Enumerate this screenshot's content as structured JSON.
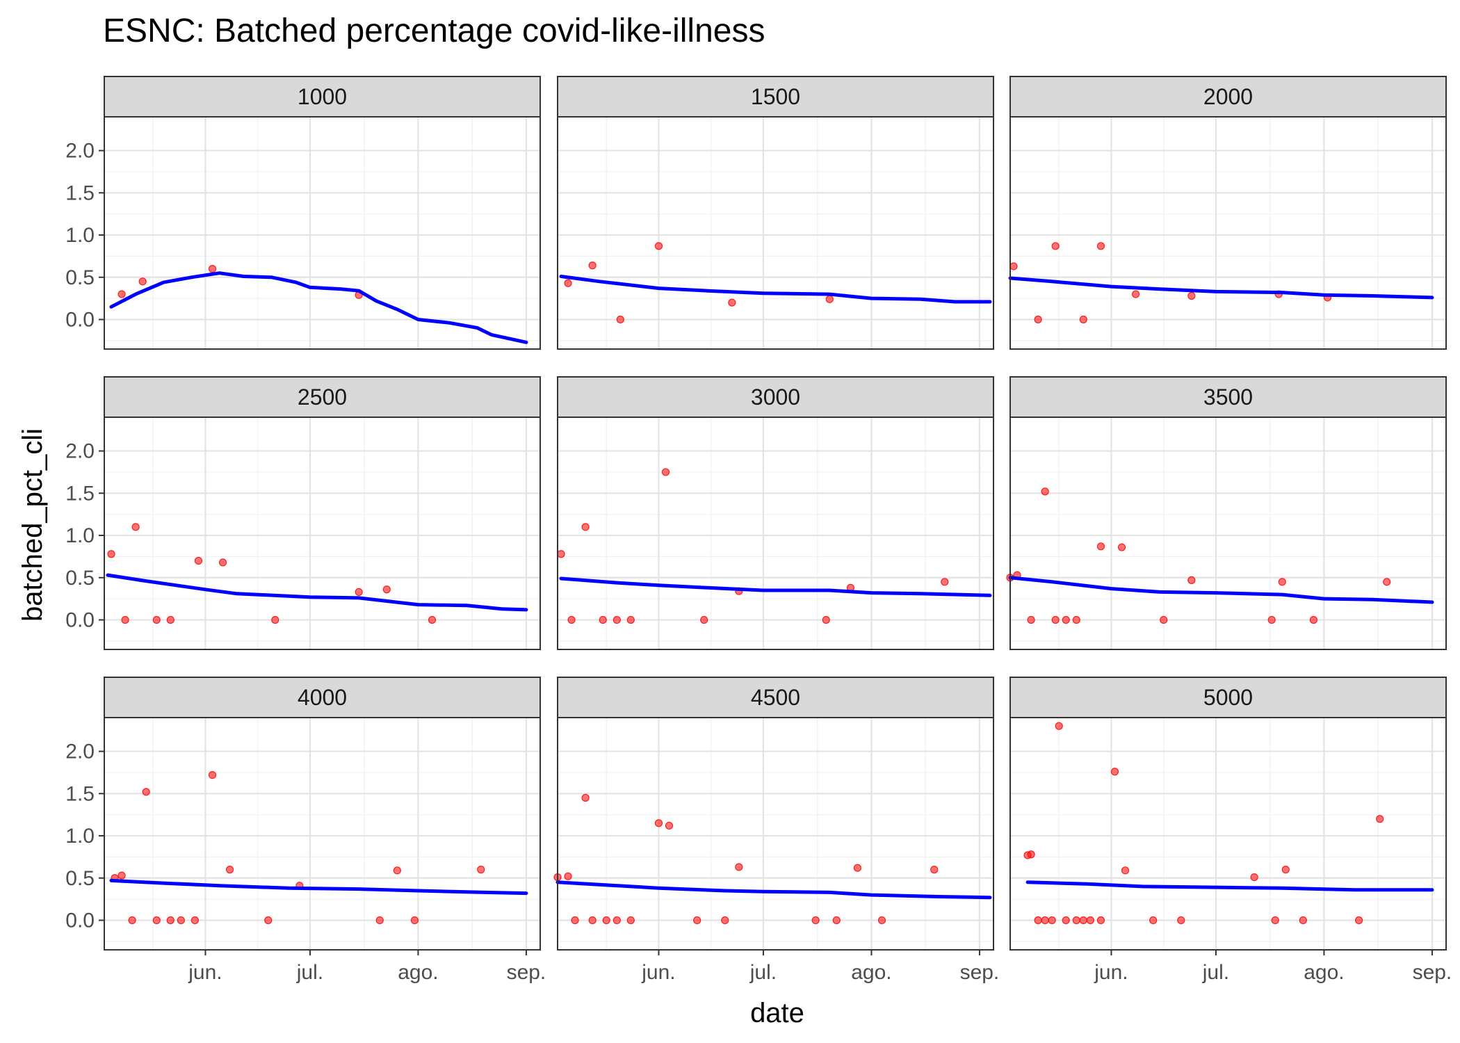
{
  "chart_data": {
    "type": "scatter",
    "title": "ESNC: Batched percentage covid-like-illness",
    "xlabel": "date",
    "ylabel": "batched_pct_cli",
    "ylim": [
      -0.35,
      2.4
    ],
    "xlim": [
      "2020-05-03",
      "2020-09-05"
    ],
    "x_ticks": [
      {
        "date": "2020-06-01",
        "label": "jun."
      },
      {
        "date": "2020-07-01",
        "label": "jul."
      },
      {
        "date": "2020-08-01",
        "label": "ago."
      },
      {
        "date": "2020-09-01",
        "label": "sep."
      }
    ],
    "y_ticks": [
      0.0,
      0.5,
      1.0,
      1.5,
      2.0
    ],
    "y_tick_labels": [
      "0.0",
      "0.5",
      "1.0",
      "1.5",
      "2.0"
    ],
    "grid": true,
    "point_color": "#ff0000",
    "line_color": "#0000ff",
    "strip_color": "#d9d9d9",
    "panels": [
      {
        "label": "1000",
        "points": [
          [
            "2020-05-08",
            0.3
          ],
          [
            "2020-05-14",
            0.45
          ],
          [
            "2020-06-03",
            0.6
          ],
          [
            "2020-07-15",
            0.29
          ]
        ],
        "line": [
          [
            "2020-05-05",
            0.15
          ],
          [
            "2020-05-12",
            0.3
          ],
          [
            "2020-05-20",
            0.44
          ],
          [
            "2020-05-28",
            0.5
          ],
          [
            "2020-06-05",
            0.55
          ],
          [
            "2020-06-12",
            0.51
          ],
          [
            "2020-06-20",
            0.5
          ],
          [
            "2020-06-27",
            0.44
          ],
          [
            "2020-07-01",
            0.38
          ],
          [
            "2020-07-10",
            0.36
          ],
          [
            "2020-07-15",
            0.34
          ],
          [
            "2020-07-20",
            0.22
          ],
          [
            "2020-07-26",
            0.12
          ],
          [
            "2020-08-01",
            0.0
          ],
          [
            "2020-08-10",
            -0.04
          ],
          [
            "2020-08-18",
            -0.1
          ],
          [
            "2020-08-22",
            -0.18
          ],
          [
            "2020-09-01",
            -0.27
          ]
        ]
      },
      {
        "label": "1500",
        "points": [
          [
            "2020-05-06",
            0.43
          ],
          [
            "2020-05-13",
            0.64
          ],
          [
            "2020-05-21",
            0.0
          ],
          [
            "2020-06-01",
            0.87
          ],
          [
            "2020-06-22",
            0.2
          ],
          [
            "2020-07-20",
            0.24
          ]
        ],
        "line": [
          [
            "2020-05-04",
            0.51
          ],
          [
            "2020-05-15",
            0.45
          ],
          [
            "2020-06-01",
            0.37
          ],
          [
            "2020-06-15",
            0.34
          ],
          [
            "2020-07-01",
            0.31
          ],
          [
            "2020-07-20",
            0.3
          ],
          [
            "2020-08-01",
            0.25
          ],
          [
            "2020-08-15",
            0.24
          ],
          [
            "2020-08-25",
            0.21
          ],
          [
            "2020-09-04",
            0.21
          ]
        ]
      },
      {
        "label": "2000",
        "points": [
          [
            "2020-05-04",
            0.63
          ],
          [
            "2020-05-11",
            0.0
          ],
          [
            "2020-05-16",
            0.87
          ],
          [
            "2020-05-24",
            0.0
          ],
          [
            "2020-05-29",
            0.87
          ],
          [
            "2020-06-08",
            0.3
          ],
          [
            "2020-06-24",
            0.28
          ],
          [
            "2020-07-19",
            0.3
          ],
          [
            "2020-08-02",
            0.26
          ]
        ],
        "line": [
          [
            "2020-05-03",
            0.49
          ],
          [
            "2020-05-15",
            0.45
          ],
          [
            "2020-06-01",
            0.39
          ],
          [
            "2020-06-15",
            0.36
          ],
          [
            "2020-07-01",
            0.33
          ],
          [
            "2020-07-20",
            0.32
          ],
          [
            "2020-08-01",
            0.29
          ],
          [
            "2020-08-15",
            0.28
          ],
          [
            "2020-09-01",
            0.26
          ]
        ]
      },
      {
        "label": "2500",
        "points": [
          [
            "2020-05-05",
            0.78
          ],
          [
            "2020-05-09",
            0.0
          ],
          [
            "2020-05-12",
            1.1
          ],
          [
            "2020-05-18",
            0.0
          ],
          [
            "2020-05-22",
            0.0
          ],
          [
            "2020-05-30",
            0.7
          ],
          [
            "2020-06-06",
            0.68
          ],
          [
            "2020-06-21",
            0.0
          ],
          [
            "2020-07-15",
            0.33
          ],
          [
            "2020-07-23",
            0.36
          ],
          [
            "2020-08-05",
            0.0
          ]
        ],
        "line": [
          [
            "2020-05-04",
            0.53
          ],
          [
            "2020-05-15",
            0.46
          ],
          [
            "2020-06-01",
            0.36
          ],
          [
            "2020-06-10",
            0.31
          ],
          [
            "2020-07-01",
            0.27
          ],
          [
            "2020-07-15",
            0.26
          ],
          [
            "2020-08-01",
            0.18
          ],
          [
            "2020-08-15",
            0.17
          ],
          [
            "2020-08-25",
            0.13
          ],
          [
            "2020-09-01",
            0.12
          ]
        ]
      },
      {
        "label": "3000",
        "points": [
          [
            "2020-05-04",
            0.78
          ],
          [
            "2020-05-07",
            0.0
          ],
          [
            "2020-05-11",
            1.1
          ],
          [
            "2020-05-16",
            0.0
          ],
          [
            "2020-05-20",
            0.0
          ],
          [
            "2020-05-24",
            0.0
          ],
          [
            "2020-06-03",
            1.75
          ],
          [
            "2020-06-14",
            0.0
          ],
          [
            "2020-06-24",
            0.34
          ],
          [
            "2020-07-19",
            0.0
          ],
          [
            "2020-07-26",
            0.38
          ],
          [
            "2020-08-22",
            0.45
          ]
        ],
        "line": [
          [
            "2020-05-04",
            0.49
          ],
          [
            "2020-05-20",
            0.44
          ],
          [
            "2020-06-01",
            0.41
          ],
          [
            "2020-06-15",
            0.38
          ],
          [
            "2020-07-01",
            0.35
          ],
          [
            "2020-07-20",
            0.35
          ],
          [
            "2020-08-01",
            0.32
          ],
          [
            "2020-08-15",
            0.31
          ],
          [
            "2020-09-04",
            0.29
          ]
        ]
      },
      {
        "label": "3500",
        "points": [
          [
            "2020-05-03",
            0.5
          ],
          [
            "2020-05-05",
            0.53
          ],
          [
            "2020-05-09",
            0.0
          ],
          [
            "2020-05-13",
            1.52
          ],
          [
            "2020-05-16",
            0.0
          ],
          [
            "2020-05-19",
            0.0
          ],
          [
            "2020-05-22",
            0.0
          ],
          [
            "2020-05-29",
            0.87
          ],
          [
            "2020-06-04",
            0.86
          ],
          [
            "2020-06-16",
            0.0
          ],
          [
            "2020-06-24",
            0.47
          ],
          [
            "2020-07-17",
            0.0
          ],
          [
            "2020-07-20",
            0.45
          ],
          [
            "2020-07-29",
            0.0
          ],
          [
            "2020-08-19",
            0.45
          ]
        ],
        "line": [
          [
            "2020-05-03",
            0.5
          ],
          [
            "2020-05-15",
            0.45
          ],
          [
            "2020-06-01",
            0.37
          ],
          [
            "2020-06-15",
            0.33
          ],
          [
            "2020-07-01",
            0.32
          ],
          [
            "2020-07-20",
            0.3
          ],
          [
            "2020-08-01",
            0.25
          ],
          [
            "2020-08-15",
            0.24
          ],
          [
            "2020-09-01",
            0.21
          ]
        ]
      },
      {
        "label": "4000",
        "points": [
          [
            "2020-05-06",
            0.5
          ],
          [
            "2020-05-08",
            0.53
          ],
          [
            "2020-05-11",
            0.0
          ],
          [
            "2020-05-15",
            1.52
          ],
          [
            "2020-05-18",
            0.0
          ],
          [
            "2020-05-22",
            0.0
          ],
          [
            "2020-05-25",
            0.0
          ],
          [
            "2020-05-29",
            0.0
          ],
          [
            "2020-06-03",
            1.72
          ],
          [
            "2020-06-08",
            0.6
          ],
          [
            "2020-06-19",
            0.0
          ],
          [
            "2020-06-28",
            0.41
          ],
          [
            "2020-07-21",
            0.0
          ],
          [
            "2020-07-26",
            0.59
          ],
          [
            "2020-07-31",
            0.0
          ],
          [
            "2020-08-19",
            0.6
          ]
        ],
        "line": [
          [
            "2020-05-05",
            0.47
          ],
          [
            "2020-05-20",
            0.44
          ],
          [
            "2020-06-05",
            0.41
          ],
          [
            "2020-06-25",
            0.38
          ],
          [
            "2020-07-15",
            0.37
          ],
          [
            "2020-08-01",
            0.35
          ],
          [
            "2020-08-20",
            0.33
          ],
          [
            "2020-09-01",
            0.32
          ]
        ]
      },
      {
        "label": "4500",
        "points": [
          [
            "2020-05-03",
            0.51
          ],
          [
            "2020-05-06",
            0.52
          ],
          [
            "2020-05-08",
            0.0
          ],
          [
            "2020-05-11",
            1.45
          ],
          [
            "2020-05-13",
            0.0
          ],
          [
            "2020-05-17",
            0.0
          ],
          [
            "2020-05-20",
            0.0
          ],
          [
            "2020-05-24",
            0.0
          ],
          [
            "2020-06-01",
            1.15
          ],
          [
            "2020-06-04",
            1.12
          ],
          [
            "2020-06-12",
            0.0
          ],
          [
            "2020-06-20",
            0.0
          ],
          [
            "2020-06-24",
            0.63
          ],
          [
            "2020-07-16",
            0.0
          ],
          [
            "2020-07-22",
            0.0
          ],
          [
            "2020-07-28",
            0.62
          ],
          [
            "2020-08-04",
            0.0
          ],
          [
            "2020-08-19",
            0.6
          ]
        ],
        "line": [
          [
            "2020-05-03",
            0.45
          ],
          [
            "2020-05-20",
            0.41
          ],
          [
            "2020-06-01",
            0.38
          ],
          [
            "2020-06-20",
            0.35
          ],
          [
            "2020-07-01",
            0.34
          ],
          [
            "2020-07-20",
            0.33
          ],
          [
            "2020-08-01",
            0.3
          ],
          [
            "2020-08-20",
            0.28
          ],
          [
            "2020-09-04",
            0.27
          ]
        ]
      },
      {
        "label": "5000",
        "points": [
          [
            "2020-05-08",
            0.77
          ],
          [
            "2020-05-09",
            0.78
          ],
          [
            "2020-05-11",
            0.0
          ],
          [
            "2020-05-13",
            0.0
          ],
          [
            "2020-05-15",
            0.0
          ],
          [
            "2020-05-17",
            2.3
          ],
          [
            "2020-05-19",
            0.0
          ],
          [
            "2020-05-22",
            0.0
          ],
          [
            "2020-05-24",
            0.0
          ],
          [
            "2020-05-26",
            0.0
          ],
          [
            "2020-05-29",
            0.0
          ],
          [
            "2020-06-02",
            1.76
          ],
          [
            "2020-06-05",
            0.59
          ],
          [
            "2020-06-13",
            0.0
          ],
          [
            "2020-06-21",
            0.0
          ],
          [
            "2020-07-12",
            0.51
          ],
          [
            "2020-07-18",
            0.0
          ],
          [
            "2020-07-21",
            0.6
          ],
          [
            "2020-07-26",
            0.0
          ],
          [
            "2020-08-11",
            0.0
          ],
          [
            "2020-08-17",
            1.2
          ]
        ],
        "line": [
          [
            "2020-05-08",
            0.45
          ],
          [
            "2020-05-25",
            0.43
          ],
          [
            "2020-06-10",
            0.4
          ],
          [
            "2020-07-01",
            0.39
          ],
          [
            "2020-07-20",
            0.38
          ],
          [
            "2020-08-10",
            0.36
          ],
          [
            "2020-09-01",
            0.36
          ]
        ]
      }
    ]
  }
}
